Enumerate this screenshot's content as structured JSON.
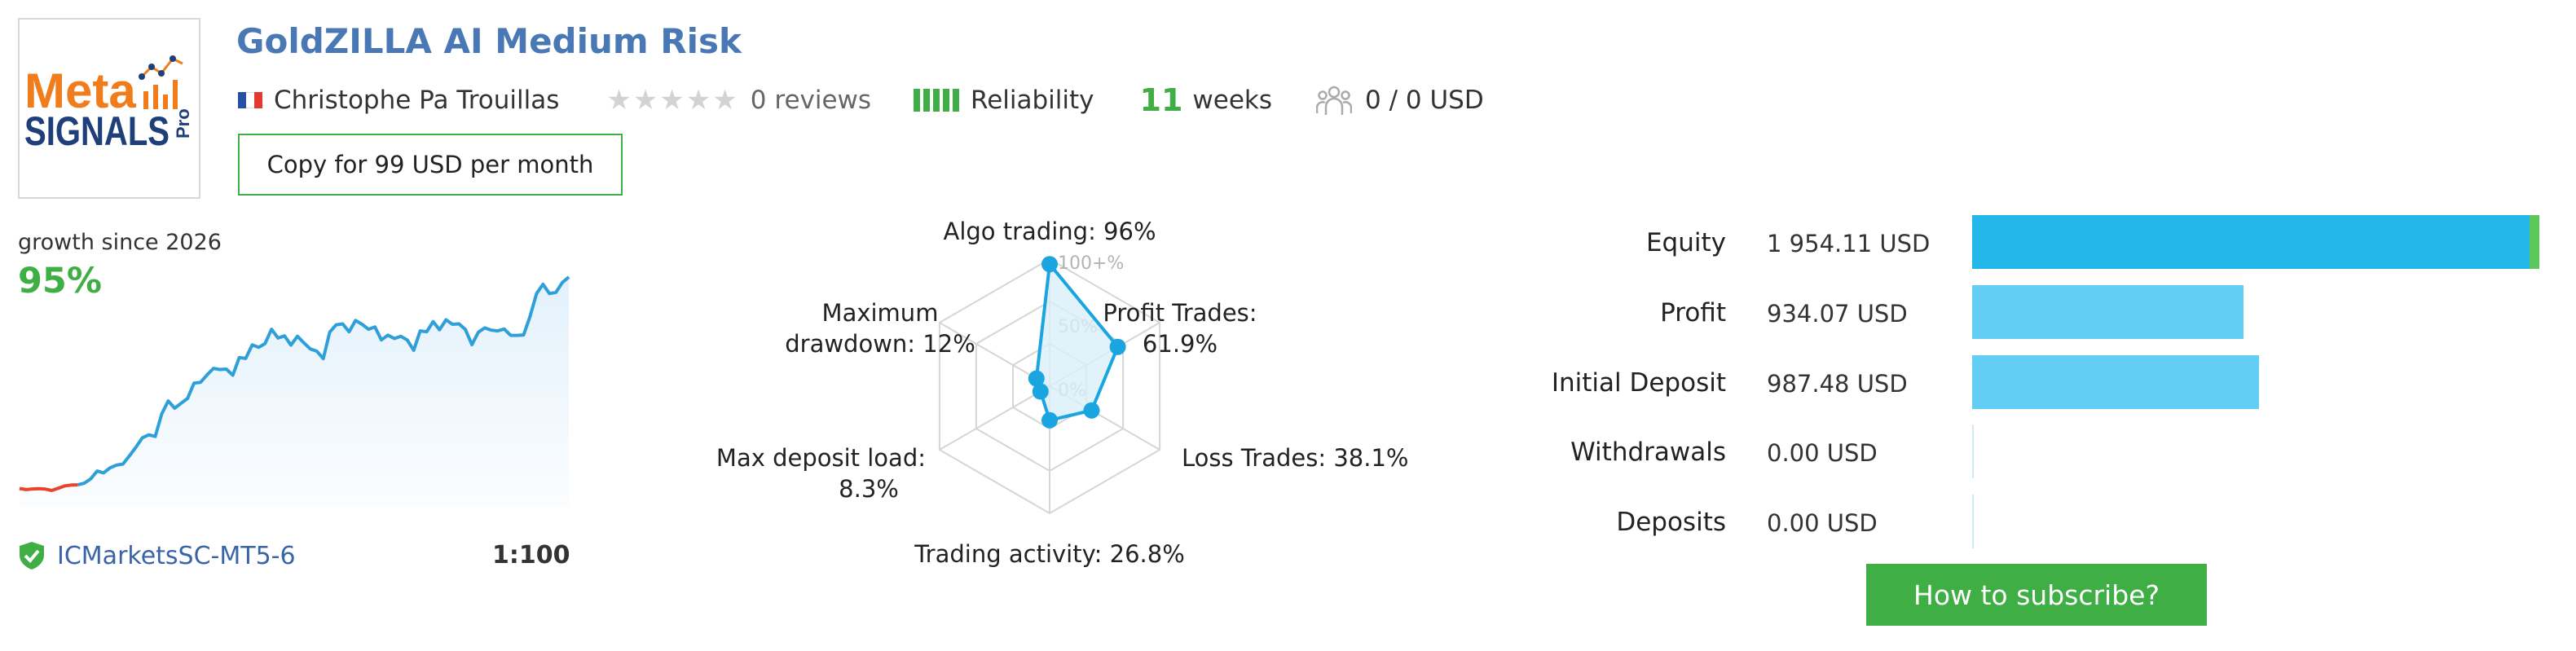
{
  "signal": {
    "title": "GoldZILLA AI Medium Risk",
    "author": "Christophe Pa Trouillas",
    "reviews": "0 reviews",
    "rating": 0,
    "reliability_label": "Reliability",
    "weeks_number": "11",
    "weeks_label": "weeks",
    "subscribers": "0 / 0 USD",
    "copy_button": "Copy for 99 USD per month"
  },
  "logo": {
    "line1": "Meta",
    "line2": "SIGNALS",
    "badge": "Pro",
    "colors": {
      "meta": "#f07c1b",
      "signals": "#1e3f7a"
    }
  },
  "growth": {
    "label": "growth since 2026",
    "value": "95%",
    "broker": "ICMarketsSC-MT5-6",
    "leverage": "1:100",
    "colors": {
      "positive": "#2e9fd8",
      "negative": "#e8442b",
      "fill": "#e3f1fb"
    },
    "series": [
      1.5,
      1.0,
      1.3,
      1.4,
      1.2,
      0.6,
      1.6,
      2.6,
      3.0,
      3.1,
      3.8,
      5.7,
      9.2,
      8.4,
      10.6,
      11.8,
      12.3,
      15.9,
      19.7,
      23.9,
      25.2,
      24.5,
      34.4,
      40.2,
      37.0,
      39.2,
      41.3,
      48.1,
      48.4,
      51.7,
      54.6,
      54.1,
      54.3,
      51.6,
      59.4,
      59.0,
      65.0,
      63.9,
      65.6,
      71.9,
      68.0,
      69.0,
      64.9,
      68.8,
      65.9,
      63.2,
      62.2,
      58.9,
      70.6,
      73.9,
      74.3,
      70.8,
      75.8,
      74.1,
      71.9,
      72.9,
      67.2,
      69.3,
      67.8,
      68.8,
      67.1,
      62.6,
      71.2,
      70.8,
      75.3,
      71.7,
      76.1,
      74.1,
      74.3,
      71.8,
      65.1,
      70.6,
      72.5,
      71.5,
      71.2,
      72.0,
      69.2,
      69.2,
      69.4,
      77.6,
      87.7,
      91.8,
      87.7,
      88.2,
      92.6,
      95.0
    ]
  },
  "chart_data": {
    "type": "radar",
    "axes": [
      {
        "name": "Algo trading",
        "label": "Algo trading: 96%",
        "value": 96
      },
      {
        "name": "Profit Trades",
        "label": "Profit Trades:\n61.9%",
        "value": 61.9
      },
      {
        "name": "Loss Trades",
        "label": "Loss Trades: 38.1%",
        "value": 38.1
      },
      {
        "name": "Trading activity",
        "label": "Trading activity: 26.8%",
        "value": 26.8
      },
      {
        "name": "Max deposit load",
        "label": "Max deposit load:\n8.3%",
        "value": 8.3
      },
      {
        "name": "Maximum drawdown",
        "label": "Maximum\ndrawdown: 12%",
        "value": 12
      }
    ],
    "ticks": [
      "0%",
      "50%",
      "100+%"
    ],
    "range": [
      0,
      100
    ],
    "colors": {
      "line": "#1aa5e0",
      "fill": "#d9eff9",
      "grid": "#d6d6d6"
    }
  },
  "stats": {
    "items": [
      {
        "label": "Equity",
        "value": "1 954.11 USD",
        "amount": 1954.11,
        "color": "#23b7e9",
        "accent": "#5cc85c"
      },
      {
        "label": "Profit",
        "value": "934.07 USD",
        "amount": 934.07,
        "color": "#63cef4"
      },
      {
        "label": "Initial Deposit",
        "value": "987.48 USD",
        "amount": 987.48,
        "color": "#63cef4"
      },
      {
        "label": "Withdrawals",
        "value": "0.00 USD",
        "amount": 0,
        "color": "#63cef4"
      },
      {
        "label": "Deposits",
        "value": "0.00 USD",
        "amount": 0,
        "color": "#63cef4"
      }
    ],
    "subscribe_button": "How to subscribe?"
  }
}
